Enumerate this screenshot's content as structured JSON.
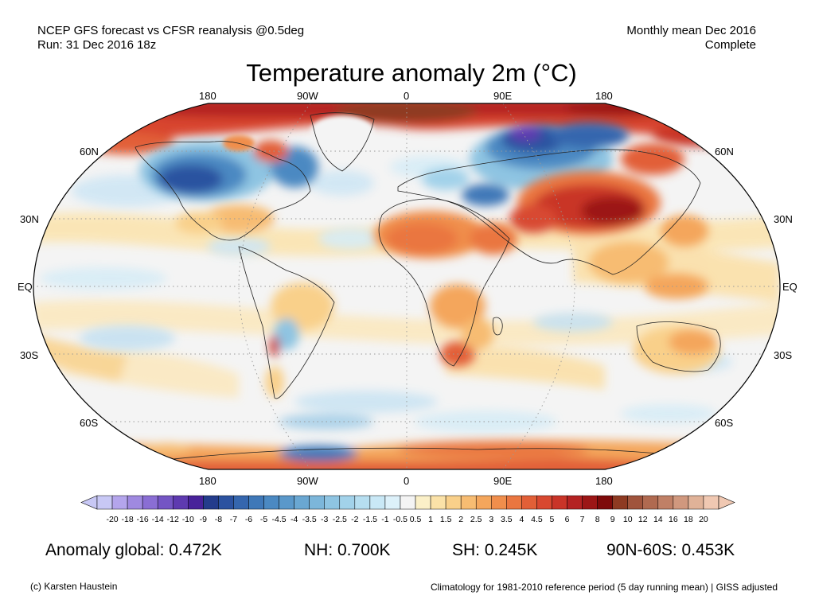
{
  "header": {
    "line1_left": "NCEP GFS forecast vs CFSR reanalysis @0.5deg",
    "line2_left": "Run: 31 Dec 2016 18z",
    "line1_right": "Monthly mean Dec 2016",
    "line2_right": "Complete"
  },
  "title": "Temperature anomaly 2m (°C)",
  "map": {
    "projection": "Robinson",
    "lon_labels_top": [
      "180",
      "90W",
      "0",
      "90E",
      "180"
    ],
    "lon_labels_bottom": [
      "180",
      "90W",
      "0",
      "90E",
      "180"
    ],
    "lat_labels_left": [
      "60N",
      "30N",
      "EQ",
      "30S",
      "60S"
    ],
    "lat_labels_right": [
      "60N",
      "30N",
      "EQ",
      "30S",
      "60S"
    ]
  },
  "colorbar": {
    "ticks": [
      "-20",
      "-18",
      "-16",
      "-14",
      "-12",
      "-10",
      "-9",
      "-8",
      "-7",
      "-6",
      "-5",
      "-4.5",
      "-4",
      "-3.5",
      "-3",
      "-2.5",
      "-2",
      "-1.5",
      "-1",
      "-0.5",
      "0.5",
      "1",
      "1.5",
      "2",
      "2.5",
      "3",
      "3.5",
      "4",
      "4.5",
      "5",
      "6",
      "7",
      "8",
      "9",
      "10",
      "12",
      "14",
      "16",
      "18",
      "20"
    ],
    "colors": [
      "#c8c8f5",
      "#b4a5ec",
      "#9f89e0",
      "#8a6ed4",
      "#7455c4",
      "#5e3ab0",
      "#48229a",
      "#243c8c",
      "#2c52a0",
      "#3566ae",
      "#3f78b8",
      "#4b89c2",
      "#5a98ca",
      "#6aa7d2",
      "#7cb6da",
      "#8ec4e2",
      "#a2d2ea",
      "#b6def0",
      "#c9e8f6",
      "#ddf1fa",
      "#f4f4f4",
      "#fbf0c8",
      "#fbe2a8",
      "#f9d08a",
      "#f7bc72",
      "#f4a65c",
      "#f08e4c",
      "#ea7640",
      "#e25f37",
      "#d84830",
      "#c93428",
      "#b42222",
      "#9c1616",
      "#7e0a0a",
      "#8e3a22",
      "#a0543c",
      "#b06a50",
      "#c08066",
      "#d0987e",
      "#e0b298",
      "#f0c8b2"
    ],
    "min_color": "#c8c8f5",
    "max_color": "#f0c8b2"
  },
  "stats": {
    "global": "Anomaly global: 0.472K",
    "nh": "NH: 0.700K",
    "sh": "SH: 0.245K",
    "arctic": "90N-60S: 0.453K"
  },
  "footer": {
    "left": "(c) Karsten Haustein",
    "right": "Climatology for 1981-2010 reference period (5 day running mean) | GISS adjusted"
  }
}
